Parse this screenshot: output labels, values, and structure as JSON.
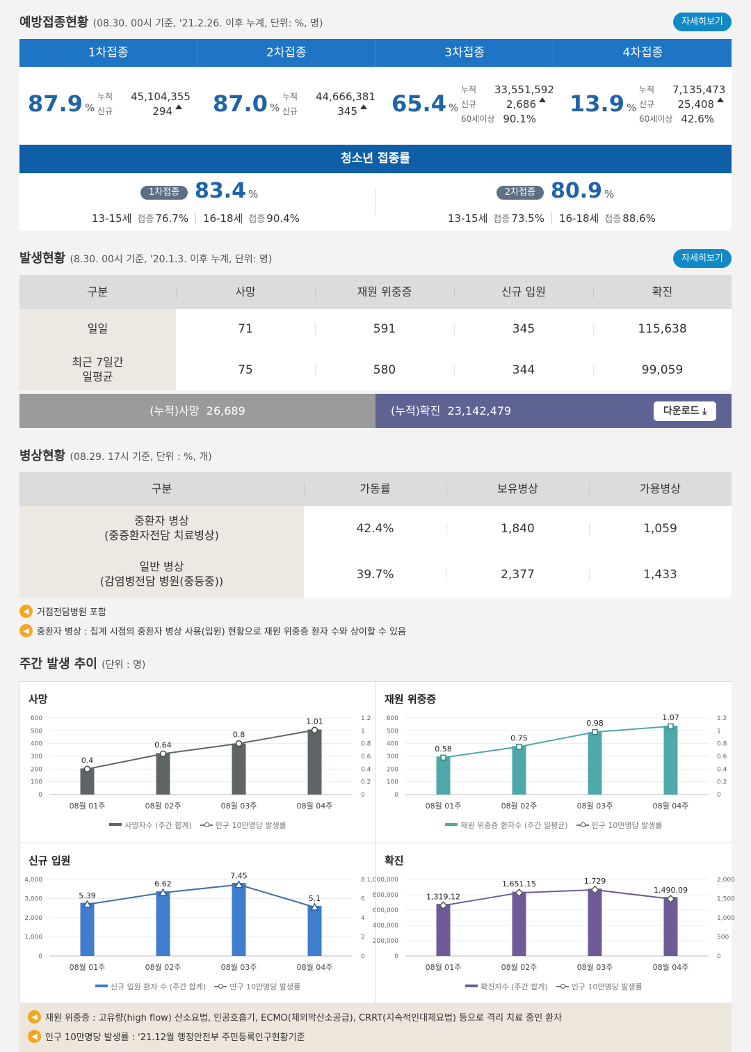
{
  "vaccination": {
    "title": "예방접종현황",
    "subtitle": "(08.30. 00시 기준, '21.2.26. 이후 누계, 단위: %, 명)",
    "more": "자세히보기",
    "doses": [
      {
        "header": "1차접종",
        "pct": "87.9",
        "unit": "%",
        "rows": [
          {
            "label": "누적",
            "value": "45,104,355",
            "up": false
          },
          {
            "label": "신규",
            "value": "294",
            "up": true
          }
        ]
      },
      {
        "header": "2차접종",
        "pct": "87.0",
        "unit": "%",
        "rows": [
          {
            "label": "누적",
            "value": "44,666,381",
            "up": false
          },
          {
            "label": "신규",
            "value": "345",
            "up": true
          }
        ]
      },
      {
        "header": "3차접종",
        "pct": "65.4",
        "unit": "%",
        "rows": [
          {
            "label": "누적",
            "value": "33,551,592",
            "up": false
          },
          {
            "label": "신규",
            "value": "2,686",
            "up": true
          },
          {
            "label": "60세이상",
            "value": "90.1%",
            "up": false
          }
        ]
      },
      {
        "header": "4차접종",
        "pct": "13.9",
        "unit": "%",
        "rows": [
          {
            "label": "누적",
            "value": "7,135,473",
            "up": false
          },
          {
            "label": "신규",
            "value": "25,408",
            "up": true
          },
          {
            "label": "60세이상",
            "value": "42.6%",
            "up": false
          }
        ]
      }
    ],
    "youth": {
      "header": "청소년 접종률",
      "items": [
        {
          "badge": "1차접종",
          "pct": "83.4",
          "unit": "%",
          "a_age": "13-15세",
          "a_lab": "접종",
          "a_val": "76.7%",
          "b_age": "16-18세",
          "b_lab": "접종",
          "b_val": "90.4%"
        },
        {
          "badge": "2차접종",
          "pct": "80.9",
          "unit": "%",
          "a_age": "13-15세",
          "a_lab": "접종",
          "a_val": "73.5%",
          "b_age": "16-18세",
          "b_lab": "접종",
          "b_val": "88.6%"
        }
      ]
    }
  },
  "occurrence": {
    "title": "발생현황",
    "subtitle": "(8.30. 00시 기준, '20.1.3. 이후 누계, 단위: 명)",
    "more": "자세히보기",
    "headers": [
      "구분",
      "사망",
      "재원 위중증",
      "신규 입원",
      "확진"
    ],
    "rows": [
      {
        "label": "일일",
        "values": [
          "71",
          "591",
          "345",
          "115,638"
        ]
      },
      {
        "label_l1": "최근 7일간",
        "label_l2": "일평균",
        "values": [
          "75",
          "580",
          "344",
          "99,059"
        ]
      }
    ],
    "cum_death_label": "(누적)사망",
    "cum_death": "26,689",
    "cum_conf_label": "(누적)확진",
    "cum_conf": "23,142,479",
    "download": "다운로드"
  },
  "beds": {
    "title": "병상현황",
    "subtitle": "(08.29. 17시 기준, 단위 : %, 개)",
    "headers": [
      "구분",
      "가동률",
      "보유병상",
      "가용병상"
    ],
    "rows": [
      {
        "l1": "중환자 병상",
        "l2": "(중증환자전담 치료병상)",
        "values": [
          "42.4%",
          "1,840",
          "1,059"
        ]
      },
      {
        "l1": "일반 병상",
        "l2": "(감염병전담 병원(중등중))",
        "values": [
          "39.7%",
          "2,377",
          "1,433"
        ]
      }
    ],
    "notes": [
      "거점전담병원 포함",
      "중환자 병상 : 집계 시점의 중환자 병상 사용(입원) 현황으로 재원 위중증 환자 수와 상이할 수 있음"
    ]
  },
  "weekly": {
    "title": "주간 발생 추이",
    "subtitle": "(단위 : 명)",
    "notes": [
      "재원 위중증 : 고유량(high flow) 산소요법, 인공호흡기, ECMO(체외막산소공급), CRRT(지속적인대체요법) 등으로 격리 치료 중인 환자",
      "인구 10만명당 발생률 : '21.12월 행정안전부 주민등록인구현황기준"
    ]
  },
  "chart_data": [
    {
      "type": "bar",
      "title": "사망",
      "categories": [
        "08월 01주",
        "08월 02주",
        "08월 03주",
        "08월 04주"
      ],
      "values": [
        205,
        325,
        400,
        510
      ],
      "ylim": [
        0,
        600
      ],
      "yticks": [
        "0",
        "100",
        "200",
        "300",
        "400",
        "500",
        "600"
      ],
      "rate": [
        0.4,
        0.64,
        0.8,
        1.01
      ],
      "rate_labels": [
        "0.4",
        "0.64",
        "0.8",
        "1.01"
      ],
      "y2lim": [
        0,
        1.2
      ],
      "y2ticks": [
        "0",
        "0.2",
        "0.4",
        "0.6",
        "0.8",
        "1",
        "1.2"
      ],
      "bar_color": "#5f6566",
      "line_color": "#5f6566",
      "marker": "circle",
      "legend_bar": "사망자수 (주간 합계)",
      "legend_line": "인구 10만명당 발생률"
    },
    {
      "type": "bar",
      "title": "재원 위중증",
      "categories": [
        "08월 01주",
        "08월 02주",
        "08월 03주",
        "08월 04주"
      ],
      "values": [
        298,
        380,
        490,
        540
      ],
      "ylim": [
        0,
        600
      ],
      "yticks": [
        "0",
        "100",
        "200",
        "300",
        "400",
        "500",
        "600"
      ],
      "rate": [
        0.58,
        0.75,
        0.98,
        1.07
      ],
      "rate_labels": [
        "0.58",
        "0.75",
        "0.98",
        "1.07"
      ],
      "y2lim": [
        0,
        1.2
      ],
      "y2ticks": [
        "0",
        "0.2",
        "0.4",
        "0.6",
        "0.8",
        "1",
        "1.2"
      ],
      "bar_color": "#4fa8aa",
      "line_color": "#4fa8aa",
      "marker": "square",
      "legend_bar": "재원 위중증 환자수 (주간 일평균)",
      "legend_line": "인구 10만명당 발생률"
    },
    {
      "type": "bar",
      "title": "신규 입원",
      "categories": [
        "08월 01주",
        "08월 02주",
        "08월 03주",
        "08월 04주"
      ],
      "values": [
        2780,
        3380,
        3820,
        2620
      ],
      "ylim": [
        0,
        4000
      ],
      "yticks": [
        "0",
        "1,000",
        "2,000",
        "3,000",
        "4,000"
      ],
      "rate": [
        5.39,
        6.62,
        7.45,
        5.1
      ],
      "rate_labels": [
        "5.39",
        "6.62",
        "7.45",
        "5.1"
      ],
      "y2lim": [
        0,
        8
      ],
      "y2ticks": [
        "0",
        "2",
        "4",
        "6",
        "8"
      ],
      "bar_color": "#3f7dce",
      "line_color": "#3f6fa9",
      "marker": "triangle",
      "legend_bar": "신규 입원 환자 수 (주간 합계)",
      "legend_line": "인구 10만명당 발생률"
    },
    {
      "type": "bar",
      "title": "확진",
      "categories": [
        "08월 01주",
        "08월 02주",
        "08월 03주",
        "08월 04주"
      ],
      "values": [
        680000,
        840000,
        880000,
        770000
      ],
      "ylim": [
        0,
        1000000
      ],
      "yticks": [
        "0",
        "200,000",
        "400,000",
        "600,000",
        "800,000",
        "1,000,000"
      ],
      "rate": [
        1319.12,
        1651.15,
        1729,
        1490.09
      ],
      "rate_labels": [
        "1,319.12",
        "1,651.15",
        "1,729",
        "1,490.09"
      ],
      "y2lim": [
        0,
        2000
      ],
      "y2ticks": [
        "0",
        "500",
        "1,000",
        "1,500",
        "2,000"
      ],
      "bar_color": "#6f5b97",
      "line_color": "#6f5b97",
      "marker": "diamond",
      "legend_bar": "확진자수 (주간 합계)",
      "legend_line": "인구 10만명당 발생률"
    }
  ]
}
